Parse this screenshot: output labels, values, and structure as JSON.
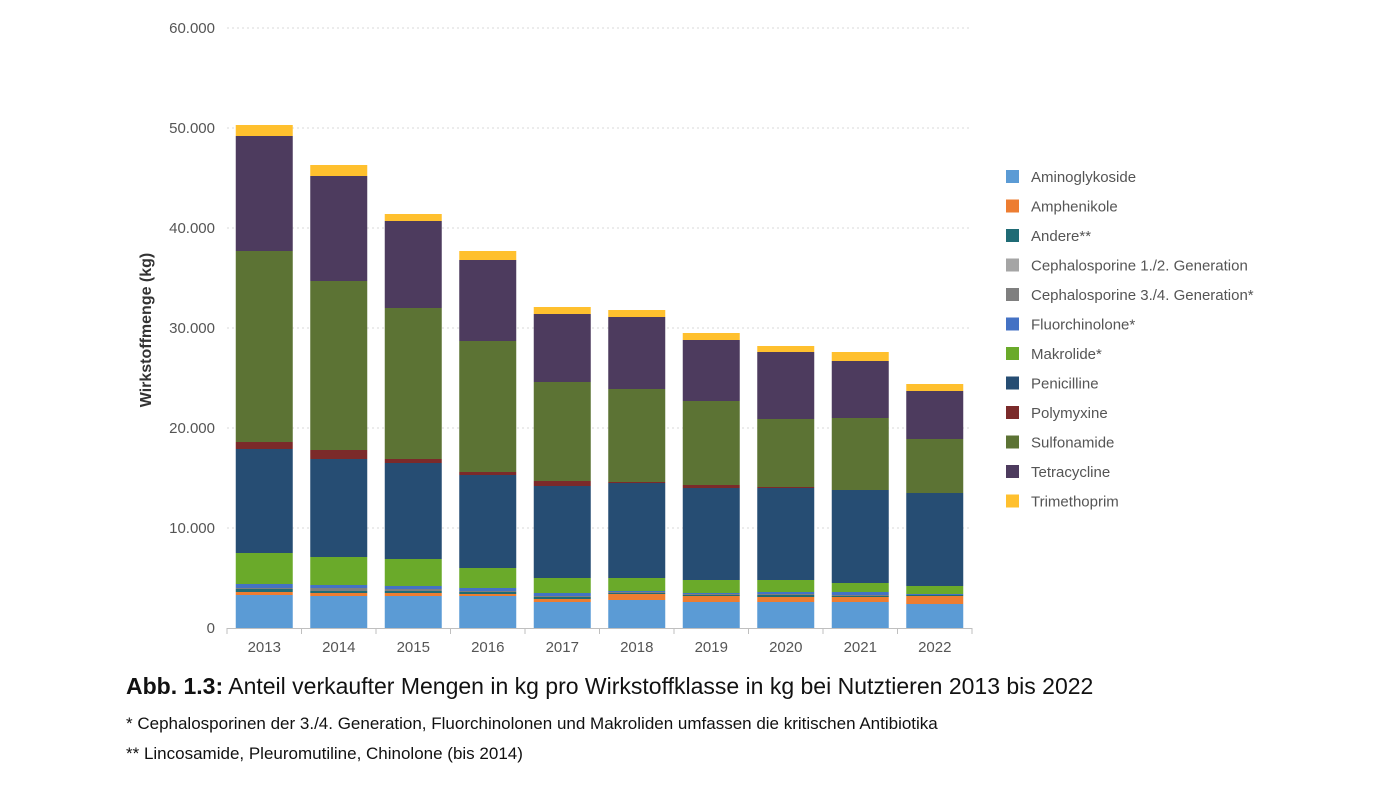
{
  "chart_data": {
    "type": "bar",
    "stacked": true,
    "categories": [
      "2013",
      "2014",
      "2015",
      "2016",
      "2017",
      "2018",
      "2019",
      "2020",
      "2021",
      "2022"
    ],
    "ylabel": "Wirkstoffmenge (kg)",
    "xlabel": "",
    "ylim": [
      0,
      60000
    ],
    "yticks": [
      0,
      10000,
      20000,
      30000,
      40000,
      50000,
      60000
    ],
    "ytick_labels": [
      "0",
      "10.000",
      "20.000",
      "30.000",
      "40.000",
      "50.000",
      "60.000"
    ],
    "grid": true,
    "legend_position": "right",
    "series": [
      {
        "name": "Aminoglykoside",
        "color": "#5b9bd5",
        "values": [
          3300,
          3200,
          3200,
          3200,
          2600,
          2800,
          2600,
          2600,
          2600,
          2400
        ]
      },
      {
        "name": "Amphenikole",
        "color": "#ed7d31",
        "values": [
          300,
          300,
          300,
          200,
          300,
          600,
          600,
          500,
          500,
          800
        ]
      },
      {
        "name": "Andere**",
        "color": "#1f6b75",
        "values": [
          300,
          200,
          200,
          200,
          200,
          100,
          100,
          200,
          100,
          100
        ]
      },
      {
        "name": "Cephalosporine 1./2. Generation",
        "color": "#a5a5a5",
        "values": [
          0,
          0,
          0,
          0,
          0,
          0,
          0,
          0,
          0,
          0
        ]
      },
      {
        "name": "Cephalosporine 3./4. Generation*",
        "color": "#7f7f7f",
        "values": [
          100,
          300,
          200,
          100,
          100,
          100,
          100,
          100,
          100,
          0
        ]
      },
      {
        "name": "Fluorchinolone*",
        "color": "#4472c4",
        "values": [
          400,
          300,
          300,
          300,
          300,
          100,
          100,
          200,
          300,
          100
        ]
      },
      {
        "name": "Makrolide*",
        "color": "#6aaa2a",
        "values": [
          3100,
          2800,
          2700,
          2000,
          1500,
          1300,
          1300,
          1200,
          900,
          800
        ]
      },
      {
        "name": "Penicilline",
        "color": "#264d73",
        "values": [
          10400,
          9800,
          9600,
          9300,
          9200,
          9500,
          9200,
          9200,
          9300,
          9300
        ]
      },
      {
        "name": "Polymyxine",
        "color": "#7b2a2a",
        "values": [
          700,
          900,
          400,
          300,
          500,
          100,
          300,
          100,
          0,
          0
        ]
      },
      {
        "name": "Sulfonamide",
        "color": "#5c7334",
        "values": [
          19100,
          16900,
          15100,
          13100,
          9900,
          9300,
          8400,
          6800,
          7200,
          5400
        ]
      },
      {
        "name": "Tetracycline",
        "color": "#4d3b5e",
        "values": [
          11500,
          10500,
          8700,
          8100,
          6800,
          7200,
          6100,
          6700,
          5700,
          4800
        ]
      },
      {
        "name": "Trimethoprim",
        "color": "#ffc02e",
        "values": [
          1100,
          1100,
          700,
          900,
          700,
          700,
          700,
          600,
          900,
          700
        ]
      }
    ]
  },
  "caption": {
    "label": "Abb. 1.3:",
    "text": " Anteil verkaufter Mengen in kg pro Wirkstoffklasse in kg bei Nutztieren 2013 bis 2022"
  },
  "footnotes": [
    "* Cephalosporinen der 3./4. Generation, Fluorchinolonen und Makroliden umfassen die kritischen Antibiotika",
    "** Lincosamide, Pleuromutiline, Chinolone (bis 2014)"
  ]
}
